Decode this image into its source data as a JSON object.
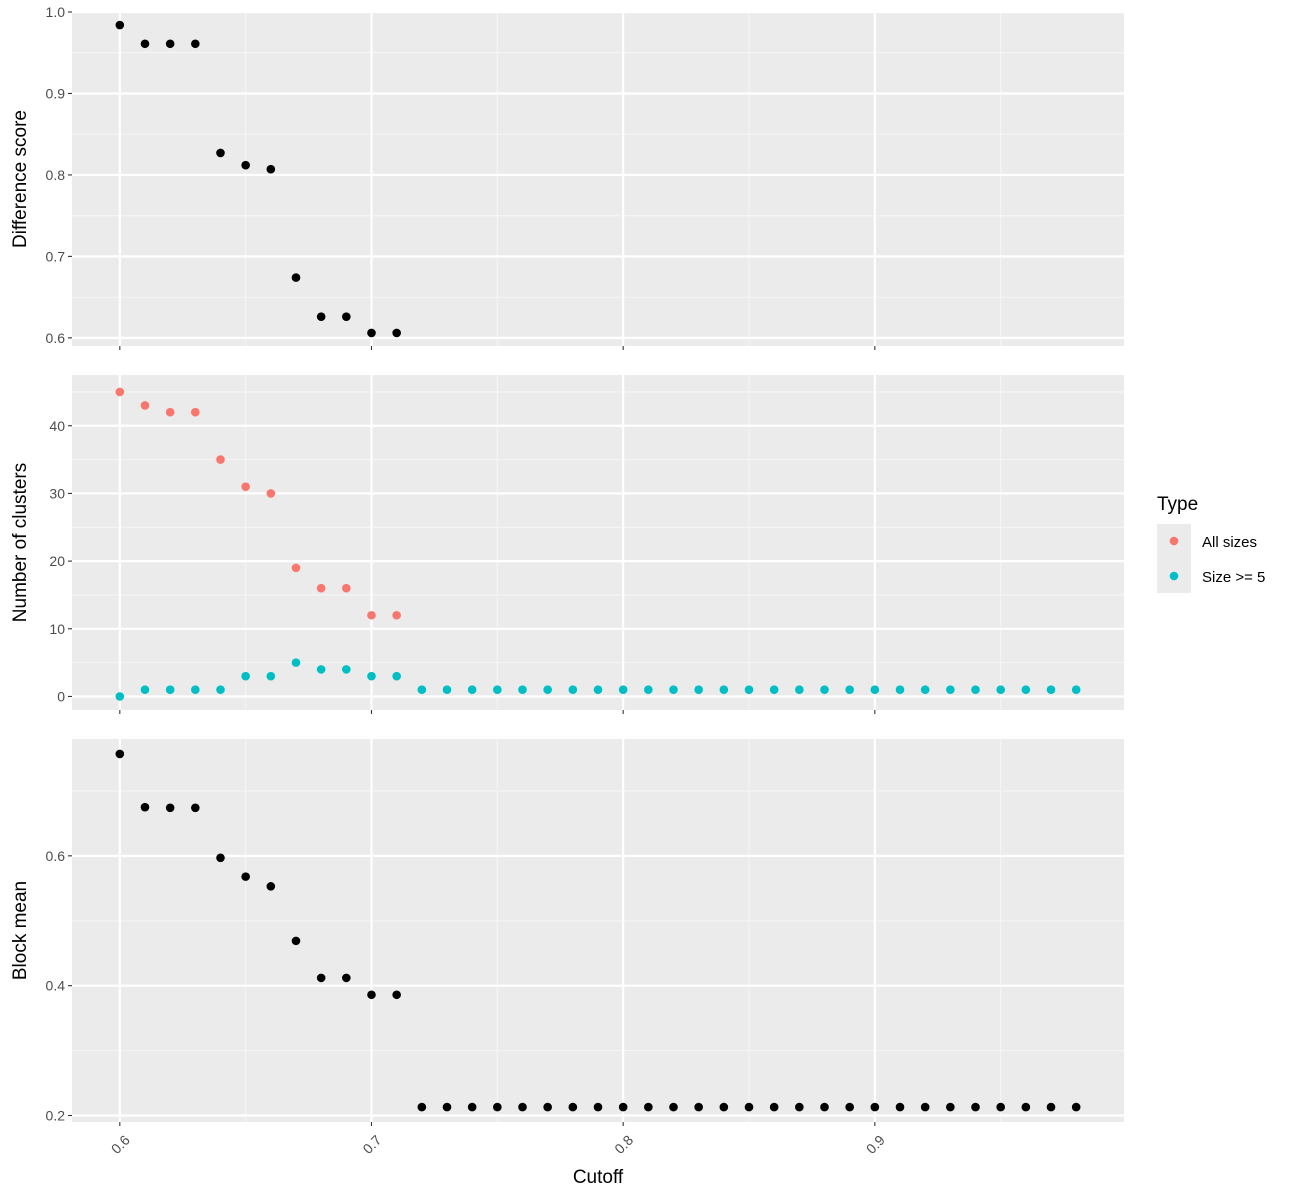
{
  "chart_data": [
    {
      "type": "scatter",
      "ylabel": "Difference score",
      "ylim": [
        0.59,
        1.0
      ],
      "yticks": [
        0.6,
        0.7,
        0.8,
        0.9,
        1.0
      ],
      "ytick_labels": [
        "0.6",
        "0.7",
        "0.8",
        "0.9",
        "1.0"
      ],
      "grid": true,
      "series": [
        {
          "color": "#000000",
          "x": [
            0.6,
            0.61,
            0.62,
            0.63,
            0.64,
            0.65,
            0.66,
            0.67,
            0.68,
            0.69,
            0.7,
            0.71
          ],
          "y": [
            0.984,
            0.961,
            0.961,
            0.961,
            0.827,
            0.812,
            0.807,
            0.674,
            0.626,
            0.626,
            0.606,
            0.606
          ]
        }
      ]
    },
    {
      "type": "scatter",
      "ylabel": "Number of clusters",
      "ylim": [
        -2,
        47.5
      ],
      "yticks": [
        0,
        10,
        20,
        30,
        40
      ],
      "ytick_labels": [
        "0",
        "10",
        "20",
        "30",
        "40"
      ],
      "grid": true,
      "series": [
        {
          "name": "All sizes",
          "color": "#F8766D",
          "x": [
            0.6,
            0.61,
            0.62,
            0.63,
            0.64,
            0.65,
            0.66,
            0.67,
            0.68,
            0.69,
            0.7,
            0.71
          ],
          "y": [
            45,
            43,
            42,
            42,
            35,
            31,
            30,
            19,
            16,
            16,
            12,
            12
          ]
        },
        {
          "name": "Size >= 5",
          "color": "#00BFC4",
          "x": [
            0.6,
            0.61,
            0.62,
            0.63,
            0.64,
            0.65,
            0.66,
            0.67,
            0.68,
            0.69,
            0.7,
            0.71,
            0.72,
            0.73,
            0.74,
            0.75,
            0.76,
            0.77,
            0.78,
            0.79,
            0.8,
            0.81,
            0.82,
            0.83,
            0.84,
            0.85,
            0.86,
            0.87,
            0.88,
            0.89,
            0.9,
            0.91,
            0.92,
            0.93,
            0.94,
            0.95,
            0.96,
            0.97,
            0.98
          ],
          "y": [
            0,
            1,
            1,
            1,
            1,
            3,
            3,
            5,
            4,
            4,
            3,
            3,
            1,
            1,
            1,
            1,
            1,
            1,
            1,
            1,
            1,
            1,
            1,
            1,
            1,
            1,
            1,
            1,
            1,
            1,
            1,
            1,
            1,
            1,
            1,
            1,
            1,
            1,
            1
          ]
        }
      ]
    },
    {
      "type": "scatter",
      "ylabel": "Block mean",
      "ylim": [
        0.19,
        0.78
      ],
      "yticks": [
        0.2,
        0.4,
        0.6
      ],
      "ytick_labels": [
        "0.2",
        "0.4",
        "0.6"
      ],
      "grid": true,
      "series": [
        {
          "color": "#000000",
          "x": [
            0.6,
            0.61,
            0.62,
            0.63,
            0.64,
            0.65,
            0.66,
            0.67,
            0.68,
            0.69,
            0.7,
            0.71,
            0.72,
            0.73,
            0.74,
            0.75,
            0.76,
            0.77,
            0.78,
            0.79,
            0.8,
            0.81,
            0.82,
            0.83,
            0.84,
            0.85,
            0.86,
            0.87,
            0.88,
            0.89,
            0.9,
            0.91,
            0.92,
            0.93,
            0.94,
            0.95,
            0.96,
            0.97,
            0.98
          ],
          "y": [
            0.757,
            0.675,
            0.674,
            0.674,
            0.597,
            0.568,
            0.553,
            0.469,
            0.412,
            0.412,
            0.386,
            0.386,
            0.213,
            0.213,
            0.213,
            0.213,
            0.213,
            0.213,
            0.213,
            0.213,
            0.213,
            0.213,
            0.213,
            0.213,
            0.213,
            0.213,
            0.213,
            0.213,
            0.213,
            0.213,
            0.213,
            0.213,
            0.213,
            0.213,
            0.213,
            0.213,
            0.213,
            0.213,
            0.213
          ]
        }
      ]
    }
  ],
  "shared_x": {
    "xlabel": "Cutoff",
    "xlim": [
      0.581,
      0.999
    ],
    "xticks": [
      0.6,
      0.7,
      0.8,
      0.9
    ],
    "xtick_labels": [
      "0.6",
      "0.7",
      "0.8",
      "0.9"
    ]
  },
  "legend": {
    "title": "Type",
    "placement": "right",
    "items": [
      {
        "label": "All sizes",
        "color": "#F8766D"
      },
      {
        "label": "Size >= 5",
        "color": "#00BFC4"
      }
    ]
  },
  "colors": {
    "panel_background": "#EBEBEB",
    "grid_major": "#FFFFFF",
    "grid_minor": "#F5F5F5"
  }
}
